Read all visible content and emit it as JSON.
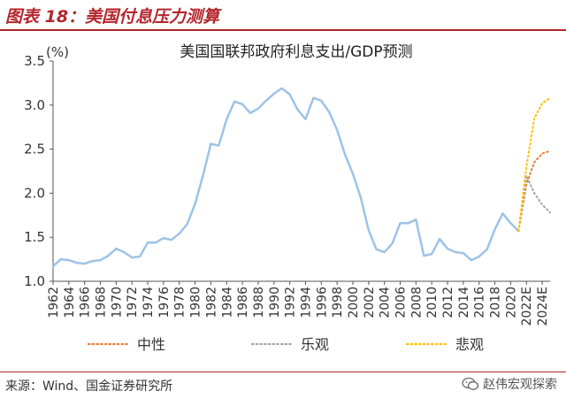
{
  "figure": {
    "title": "图表 18：美国付息压力测算",
    "source": "来源：Wind、国金证券研究所",
    "watermark": "赵伟宏观探索"
  },
  "colors": {
    "accent": "#b3262c",
    "history": "#9dc3e6",
    "neutral": "#ed7d31",
    "optimistic": "#a5a5a5",
    "pessimistic": "#ffc000"
  },
  "chart_data": {
    "type": "line",
    "title": "美国国联邦政府利息支出/GDP预测",
    "ylabel": "(%)",
    "ylim": [
      1.0,
      3.5
    ],
    "yticks": [
      "1.0",
      "1.5",
      "2.0",
      "2.5",
      "3.0",
      "3.5"
    ],
    "xticks": [
      "1962",
      "1964",
      "1966",
      "1968",
      "1970",
      "1972",
      "1974",
      "1976",
      "1978",
      "1980",
      "1982",
      "1984",
      "1986",
      "1988",
      "1990",
      "1992",
      "1994",
      "1996",
      "1998",
      "2000",
      "2002",
      "2004",
      "2006",
      "2008",
      "2010",
      "2012",
      "2014",
      "2016",
      "2018",
      "2020",
      "2022E",
      "2024E"
    ],
    "grid": false,
    "legend_position": "bottom",
    "series": [
      {
        "name": "",
        "style": "solid",
        "x": [
          1962,
          1963,
          1964,
          1965,
          1966,
          1967,
          1968,
          1969,
          1970,
          1971,
          1972,
          1973,
          1974,
          1975,
          1976,
          1977,
          1978,
          1979,
          1980,
          1981,
          1982,
          1983,
          1984,
          1985,
          1986,
          1987,
          1988,
          1989,
          1990,
          1991,
          1992,
          1993,
          1994,
          1995,
          1996,
          1997,
          1998,
          1999,
          2000,
          2001,
          2002,
          2003,
          2004,
          2005,
          2006,
          2007,
          2008,
          2009,
          2010,
          2011,
          2012,
          2013,
          2014,
          2015,
          2016,
          2017,
          2018,
          2019,
          2020,
          2021
        ],
        "values": [
          1.17,
          1.25,
          1.24,
          1.21,
          1.2,
          1.23,
          1.24,
          1.29,
          1.37,
          1.33,
          1.27,
          1.28,
          1.44,
          1.44,
          1.49,
          1.47,
          1.54,
          1.65,
          1.88,
          2.2,
          2.56,
          2.54,
          2.84,
          3.04,
          3.01,
          2.91,
          2.96,
          3.05,
          3.13,
          3.19,
          3.12,
          2.95,
          2.84,
          3.08,
          3.05,
          2.92,
          2.72,
          2.44,
          2.22,
          1.95,
          1.58,
          1.36,
          1.33,
          1.43,
          1.66,
          1.66,
          1.7,
          1.29,
          1.31,
          1.48,
          1.37,
          1.33,
          1.32,
          1.24,
          1.28,
          1.36,
          1.59,
          1.77,
          1.66,
          1.57
        ]
      },
      {
        "name": "中性",
        "style": "dotted",
        "x": [
          2021,
          2022,
          2023,
          2024,
          2025
        ],
        "values": [
          1.57,
          2.1,
          2.35,
          2.45,
          2.48
        ]
      },
      {
        "name": "乐观",
        "style": "dotted",
        "x": [
          2021,
          2022,
          2023,
          2024,
          2025
        ],
        "values": [
          1.57,
          2.2,
          2.0,
          1.87,
          1.78
        ]
      },
      {
        "name": "悲观",
        "style": "dotted",
        "x": [
          2021,
          2022,
          2023,
          2024,
          2025
        ],
        "values": [
          1.57,
          2.3,
          2.85,
          3.02,
          3.08
        ]
      }
    ]
  }
}
